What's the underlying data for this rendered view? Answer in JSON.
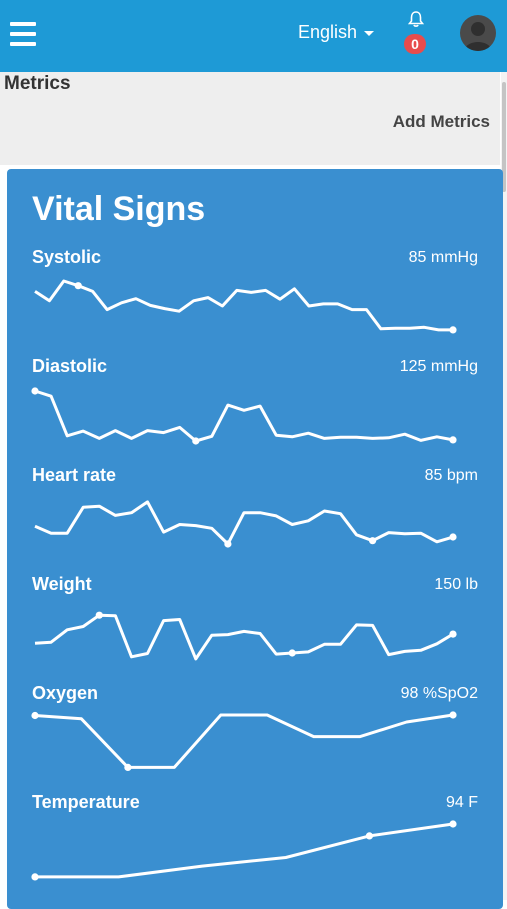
{
  "header": {
    "language_label": "English",
    "notifications_count": "0"
  },
  "subheader": {
    "title": "Metrics",
    "add_label": "Add Metrics"
  },
  "card": {
    "title": "Vital Signs",
    "metrics": [
      {
        "label": "Systolic",
        "value": "85 mmHg",
        "points": [
          0.8,
          0.62,
          1.0,
          0.91,
          0.8,
          0.45,
          0.58,
          0.66,
          0.53,
          0.47,
          0.42,
          0.62,
          0.68,
          0.52,
          0.82,
          0.78,
          0.82,
          0.65,
          0.85,
          0.52,
          0.56,
          0.56,
          0.45,
          0.45,
          0.08,
          0.09,
          0.09,
          0.11,
          0.06,
          0.06
        ],
        "dots": [
          3,
          29
        ]
      },
      {
        "label": "Diastolic",
        "value": "125 mmHg",
        "points": [
          0.98,
          0.88,
          0.12,
          0.21,
          0.07,
          0.22,
          0.07,
          0.22,
          0.18,
          0.28,
          0.02,
          0.11,
          0.71,
          0.61,
          0.69,
          0.13,
          0.1,
          0.17,
          0.07,
          0.09,
          0.09,
          0.07,
          0.08,
          0.15,
          0.03,
          0.1,
          0.04
        ],
        "dots": [
          0,
          10,
          26
        ]
      },
      {
        "label": "Heart rate",
        "value": "85 bpm",
        "points": [
          0.46,
          0.33,
          0.33,
          0.81,
          0.83,
          0.66,
          0.71,
          0.91,
          0.35,
          0.49,
          0.47,
          0.42,
          0.13,
          0.71,
          0.71,
          0.65,
          0.49,
          0.56,
          0.74,
          0.69,
          0.3,
          0.19,
          0.34,
          0.32,
          0.33,
          0.17,
          0.26
        ],
        "dots": [
          12,
          21,
          26
        ]
      },
      {
        "label": "Weight",
        "value": "150 lb",
        "points": [
          0.31,
          0.33,
          0.56,
          0.62,
          0.83,
          0.82,
          0.06,
          0.12,
          0.73,
          0.75,
          0.02,
          0.46,
          0.47,
          0.53,
          0.49,
          0.11,
          0.13,
          0.15,
          0.29,
          0.29,
          0.65,
          0.64,
          0.1,
          0.16,
          0.18,
          0.3,
          0.48
        ],
        "dots": [
          4,
          16,
          26
        ]
      },
      {
        "label": "Oxygen",
        "value": "98 %SpO2",
        "points": [
          0.99,
          0.93,
          0.03,
          0.03,
          1.0,
          1.0,
          0.6,
          0.6,
          0.87,
          1.0
        ],
        "dots": [
          0,
          2,
          9
        ]
      },
      {
        "label": "Temperature",
        "value": "94 F",
        "points": [
          0.02,
          0.02,
          0.22,
          0.38,
          0.78,
          1.0
        ],
        "dots": [
          0,
          4,
          5
        ]
      }
    ]
  }
}
